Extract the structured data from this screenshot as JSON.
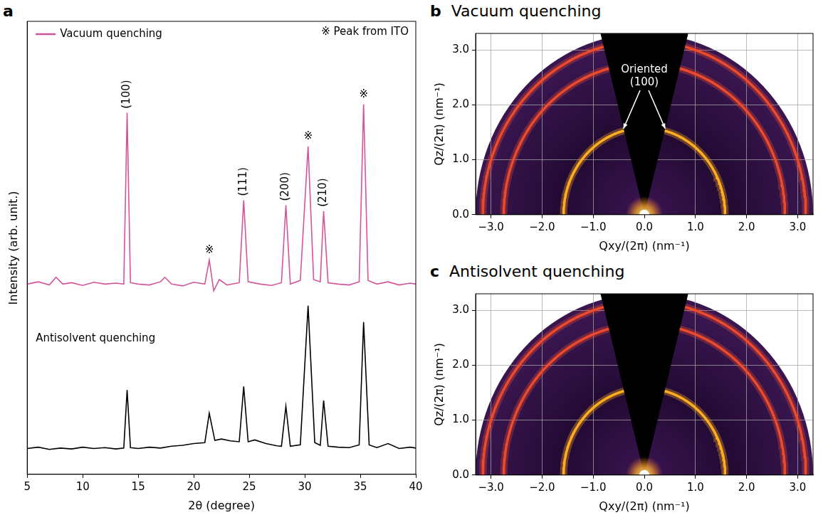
{
  "chart_data": [
    {
      "panel": "a",
      "type": "line",
      "x_label": "2θ (degree)",
      "y_label": "Intensity (arb. unit.)",
      "xlim": [
        5,
        40
      ],
      "xticks": [
        5,
        10,
        15,
        20,
        25,
        30,
        35,
        40
      ],
      "ylim": [
        0,
        100
      ],
      "tick_labels": "x",
      "grid": false,
      "series": [
        {
          "name": "Vacuum quenching",
          "color": "#d4549a",
          "x": [
            5,
            6,
            7,
            7.6,
            8.2,
            9,
            10,
            11,
            12,
            13,
            13.7,
            14,
            14.3,
            15,
            16,
            17,
            17.4,
            18,
            19,
            20,
            21,
            21.4,
            21.8,
            22.3,
            23,
            24.1,
            24.5,
            24.9,
            26,
            27,
            27.9,
            28.3,
            28.7,
            29.6,
            30.3,
            30.8,
            31.4,
            31.7,
            32.1,
            33,
            34,
            34.9,
            35.3,
            35.7,
            36.5,
            37.5,
            38.5,
            39.5,
            40
          ],
          "values": [
            42,
            42.5,
            41.8,
            43.5,
            42,
            42.3,
            41.7,
            42.4,
            42,
            42.2,
            42,
            79.8,
            42.3,
            42,
            41.8,
            42.5,
            43.5,
            42,
            41.6,
            42.4,
            42,
            47.3,
            40.5,
            43,
            41.8,
            42.3,
            60.5,
            42.5,
            42,
            41.7,
            42.3,
            59.4,
            42,
            42.8,
            72.4,
            43,
            42.5,
            58.1,
            42.3,
            42,
            41.8,
            42.5,
            81.7,
            42.8,
            42,
            42.5,
            41.8,
            42.2,
            42
          ]
        },
        {
          "name": "Antisolvent quenching",
          "color": "#000000",
          "x": [
            5,
            6,
            7,
            8,
            9,
            10,
            11,
            12,
            13,
            13.7,
            14,
            14.3,
            15,
            16,
            17,
            18,
            19,
            20,
            21,
            21.4,
            21.9,
            22.5,
            23.3,
            24.1,
            24.5,
            24.9,
            25.5,
            26.5,
            27.5,
            27.9,
            28.3,
            28.7,
            29.6,
            30.3,
            30.9,
            31.4,
            31.7,
            32.1,
            33,
            34,
            34.9,
            35.3,
            35.8,
            36.5,
            37.5,
            38.5,
            39.5,
            40
          ],
          "values": [
            5.7,
            6,
            5.5,
            5.8,
            5.6,
            6,
            5.7,
            5.9,
            5.6,
            5.8,
            18.6,
            5.9,
            5.7,
            6,
            5.8,
            6.2,
            6.4,
            6.8,
            7,
            13.5,
            7.5,
            7.8,
            7.4,
            7.2,
            19.4,
            7.2,
            7.6,
            6.8,
            6.3,
            6.2,
            15,
            6.2,
            6.5,
            37.2,
            7,
            6.4,
            16.3,
            6.2,
            6,
            5.9,
            6.5,
            33.6,
            6.5,
            5.9,
            6.8,
            5.7,
            6,
            5.8
          ]
        }
      ],
      "annotations": [
        {
          "text": "※ Peak from ITO"
        },
        {
          "text": "(100)",
          "x": 14
        },
        {
          "text": "※",
          "x": 21.4
        },
        {
          "text": "(111)",
          "x": 24.5
        },
        {
          "text": "(200)",
          "x": 28.3
        },
        {
          "text": "※",
          "x": 30.3
        },
        {
          "text": "(210)",
          "x": 31.7
        },
        {
          "text": "※",
          "x": 35.3
        }
      ]
    },
    {
      "panel": "b",
      "type": "rings",
      "title": "Vacuum quenching",
      "x_label": "Qxy/(2π) (nm⁻¹)",
      "y_label": "Qz/(2π) (nm⁻¹)",
      "xlim": [
        -3.3,
        3.3
      ],
      "xticks": [
        {
          "value": -3,
          "label": "−3.0"
        },
        {
          "value": -2,
          "label": "−2.0"
        },
        {
          "value": -1,
          "label": "−1.0"
        },
        {
          "value": 0,
          "label": "0.0"
        },
        {
          "value": 1,
          "label": "1.0"
        },
        {
          "value": 2,
          "label": "2.0"
        },
        {
          "value": 3,
          "label": "3.0"
        }
      ],
      "ylim": [
        0,
        3.3
      ],
      "yticks": [
        {
          "value": 0,
          "label": "0.0"
        },
        {
          "value": 1,
          "label": "1.0"
        },
        {
          "value": 2,
          "label": "2.0"
        },
        {
          "value": 3,
          "label": "3.0"
        }
      ],
      "grid": true,
      "rings": [
        {
          "q": 1.58,
          "color": "#ffad1f"
        },
        {
          "q": 2.75,
          "color": "#ee4a2c"
        },
        {
          "q": 3.16,
          "color": "#ee4a2c"
        }
      ],
      "annotations": [
        {
          "text": "Oriented (100)"
        }
      ]
    },
    {
      "panel": "c",
      "type": "rings",
      "title": "Antisolvent quenching",
      "x_label": "Qxy/(2π) (nm⁻¹)",
      "y_label": "Qz/(2π) (nm⁻¹)",
      "xlim": [
        -3.3,
        3.3
      ],
      "xticks": [
        {
          "value": -3,
          "label": "−3.0"
        },
        {
          "value": -2,
          "label": "−2.0"
        },
        {
          "value": -1,
          "label": "−1.0"
        },
        {
          "value": 0,
          "label": "0.0"
        },
        {
          "value": 1,
          "label": "1.0"
        },
        {
          "value": 2,
          "label": "2.0"
        },
        {
          "value": 3,
          "label": "3.0"
        }
      ],
      "ylim": [
        0,
        3.3
      ],
      "yticks": [
        {
          "value": 0,
          "label": "0.0"
        },
        {
          "value": 1,
          "label": "1.0"
        },
        {
          "value": 2,
          "label": "2.0"
        },
        {
          "value": 3,
          "label": "3.0"
        }
      ],
      "grid": true,
      "rings": [
        {
          "q": 1.58,
          "color": "#ffad1f"
        },
        {
          "q": 2.75,
          "color": "#ee4a2c"
        },
        {
          "q": 3.16,
          "color": "#ee4a2c"
        }
      ]
    }
  ]
}
